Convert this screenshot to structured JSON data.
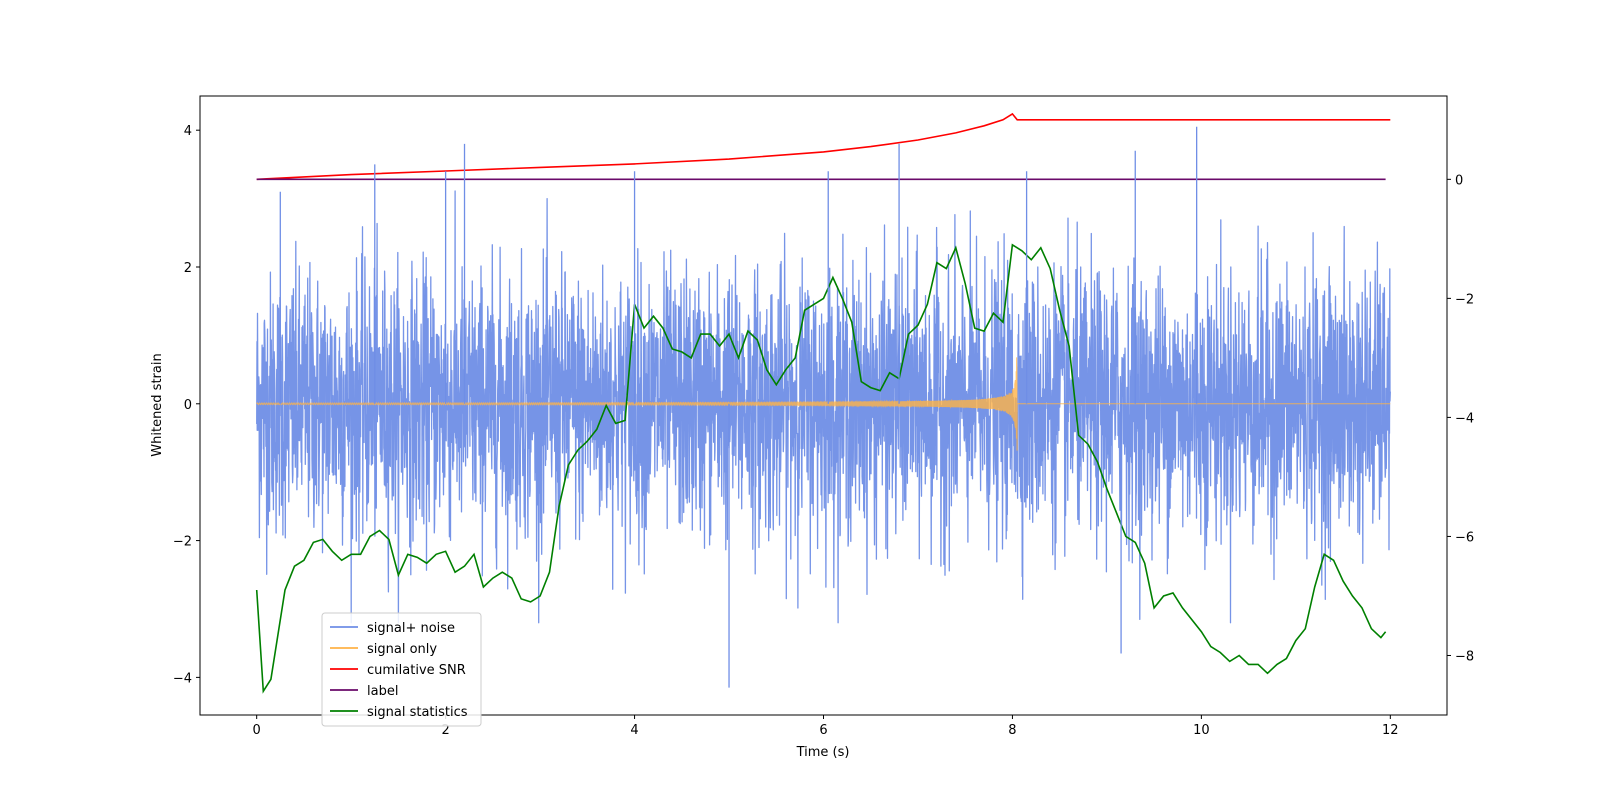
{
  "chart_data": {
    "type": "line",
    "title": "",
    "xlabel": "Time (s)",
    "ylabel": "Whitened strain",
    "y2label": "",
    "xlim": [
      -0.6,
      12.6
    ],
    "ylim": [
      -4.55,
      4.5
    ],
    "y2lim": [
      -9.0,
      1.4
    ],
    "xticks": [
      0,
      2,
      4,
      6,
      8,
      10,
      12
    ],
    "yticks": [
      -4,
      -2,
      0,
      2,
      4
    ],
    "y2ticks": [
      -8,
      -6,
      -4,
      -2,
      0
    ],
    "legend_position": "lower-left",
    "legend": [
      {
        "label": "signal+ noise",
        "color": "#6f8ee6"
      },
      {
        "label": "signal only",
        "color": "#ffb347"
      },
      {
        "label": "cumilative SNR",
        "color": "#ff0000"
      },
      {
        "label": "label",
        "color": "#6a0a6a"
      },
      {
        "label": "signal statistics",
        "color": "#008000"
      }
    ],
    "series": [
      {
        "name": "signal+ noise",
        "axis": "left",
        "color": "#6f8ee6",
        "description": "noisy whitened strain, t = 0 to 12 s, amplitude mostly within ±2.5",
        "t_range": [
          0,
          12
        ],
        "noise_std": 0.95,
        "peaks": [
          [
            0.25,
            3.1
          ],
          [
            1.25,
            3.5
          ],
          [
            2.0,
            3.4
          ],
          [
            2.2,
            3.8
          ],
          [
            4.0,
            3.4
          ],
          [
            6.05,
            3.4
          ],
          [
            6.8,
            3.8
          ],
          [
            8.15,
            3.4
          ],
          [
            9.3,
            3.7
          ],
          [
            9.95,
            4.05
          ],
          [
            5.0,
            -4.15
          ],
          [
            9.15,
            -3.65
          ]
        ]
      },
      {
        "name": "signal only",
        "axis": "left",
        "color": "#ffb347",
        "description": "inspiral chirp growing until merger near 8.05 s",
        "merger_time": 8.05,
        "peak_amplitude": 0.68
      },
      {
        "name": "cumilative SNR",
        "axis": "right",
        "color": "#ff0000",
        "x": [
          0,
          1,
          2,
          3,
          4,
          5,
          6,
          6.5,
          7,
          7.4,
          7.7,
          7.9,
          8.0,
          8.05,
          12.0
        ],
        "y": [
          0.0,
          0.08,
          0.14,
          0.2,
          0.26,
          0.34,
          0.46,
          0.55,
          0.66,
          0.78,
          0.9,
          1.0,
          1.1,
          1.0,
          1.0
        ]
      },
      {
        "name": "label",
        "axis": "right",
        "color": "#6a0a6a",
        "x": [
          0,
          11.95
        ],
        "y": [
          0,
          0
        ]
      },
      {
        "name": "signal statistics",
        "axis": "right",
        "color": "#008000",
        "x": [
          0.0,
          0.07,
          0.15,
          0.3,
          0.4,
          0.5,
          0.6,
          0.7,
          0.8,
          0.9,
          1.0,
          1.1,
          1.2,
          1.3,
          1.4,
          1.5,
          1.6,
          1.7,
          1.8,
          1.9,
          2.0,
          2.1,
          2.2,
          2.3,
          2.4,
          2.5,
          2.6,
          2.7,
          2.8,
          2.9,
          3.0,
          3.1,
          3.2,
          3.3,
          3.4,
          3.5,
          3.6,
          3.7,
          3.8,
          3.9,
          4.0,
          4.1,
          4.2,
          4.3,
          4.4,
          4.5,
          4.6,
          4.7,
          4.8,
          4.9,
          5.0,
          5.1,
          5.2,
          5.3,
          5.4,
          5.5,
          5.6,
          5.7,
          5.8,
          5.9,
          6.0,
          6.1,
          6.2,
          6.3,
          6.4,
          6.5,
          6.6,
          6.7,
          6.8,
          6.9,
          7.0,
          7.1,
          7.2,
          7.3,
          7.4,
          7.5,
          7.6,
          7.7,
          7.8,
          7.9,
          8.0,
          8.1,
          8.2,
          8.3,
          8.4,
          8.5,
          8.6,
          8.7,
          8.8,
          8.9,
          9.0,
          9.1,
          9.2,
          9.3,
          9.4,
          9.5,
          9.6,
          9.7,
          9.8,
          9.9,
          10.0,
          10.1,
          10.2,
          10.3,
          10.4,
          10.5,
          10.6,
          10.7,
          10.8,
          10.9,
          11.0,
          11.1,
          11.2,
          11.3,
          11.4,
          11.5,
          11.6,
          11.7,
          11.8,
          11.9,
          11.95
        ],
        "y": [
          -6.9,
          -8.6,
          -8.4,
          -6.9,
          -6.5,
          -6.4,
          -6.1,
          -6.05,
          -6.25,
          -6.4,
          -6.3,
          -6.3,
          -6.0,
          -5.9,
          -6.05,
          -6.65,
          -6.3,
          -6.35,
          -6.45,
          -6.3,
          -6.25,
          -6.6,
          -6.5,
          -6.3,
          -6.85,
          -6.7,
          -6.6,
          -6.7,
          -7.05,
          -7.1,
          -7.0,
          -6.6,
          -5.5,
          -4.8,
          -4.55,
          -4.4,
          -4.2,
          -3.8,
          -4.1,
          -4.05,
          -2.1,
          -2.5,
          -2.3,
          -2.5,
          -2.85,
          -2.9,
          -3.0,
          -2.6,
          -2.6,
          -2.8,
          -2.6,
          -3.0,
          -2.55,
          -2.7,
          -3.2,
          -3.45,
          -3.2,
          -3.0,
          -2.2,
          -2.1,
          -2.0,
          -1.65,
          -2.0,
          -2.4,
          -3.4,
          -3.5,
          -3.55,
          -3.25,
          -3.35,
          -2.6,
          -2.45,
          -2.1,
          -1.4,
          -1.5,
          -1.15,
          -1.75,
          -2.5,
          -2.55,
          -2.25,
          -2.4,
          -1.1,
          -1.2,
          -1.35,
          -1.15,
          -1.5,
          -2.2,
          -2.8,
          -4.3,
          -4.45,
          -4.75,
          -5.2,
          -5.6,
          -6.0,
          -6.1,
          -6.45,
          -7.2,
          -7.0,
          -6.95,
          -7.2,
          -7.4,
          -7.6,
          -7.85,
          -7.95,
          -8.1,
          -8.0,
          -8.15,
          -8.15,
          -8.3,
          -8.15,
          -8.05,
          -7.75,
          -7.55,
          -6.85,
          -6.3,
          -6.4,
          -6.75,
          -7.0,
          -7.2,
          -7.55,
          -7.7,
          -7.6
        ]
      }
    ]
  }
}
